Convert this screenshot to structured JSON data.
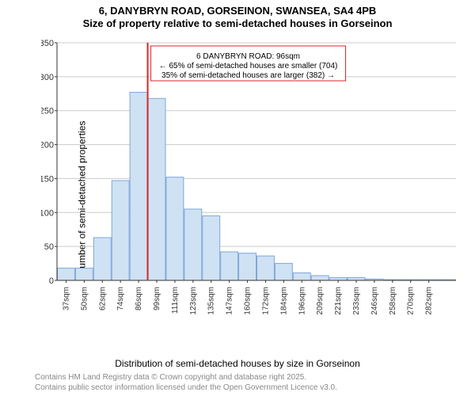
{
  "titles": {
    "line1": "6, DANYBRYN ROAD, GORSEINON, SWANSEA, SA4 4PB",
    "line2": "Size of property relative to semi-detached houses in Gorseinon"
  },
  "ylabel": "Number of semi-detached properties",
  "xlabel": "Distribution of semi-detached houses by size in Gorseinon",
  "footer": {
    "line1": "Contains HM Land Registry data © Crown copyright and database right 2025.",
    "line2": "Contains public sector information licensed under the Open Government Licence v3.0."
  },
  "chart": {
    "type": "bar",
    "ylim": [
      0,
      350
    ],
    "ytick_step": 50,
    "xtick_labels": [
      "37sqm",
      "50sqm",
      "62sqm",
      "74sqm",
      "86sqm",
      "99sqm",
      "111sqm",
      "123sqm",
      "135sqm",
      "147sqm",
      "160sqm",
      "172sqm",
      "184sqm",
      "196sqm",
      "209sqm",
      "221sqm",
      "233sqm",
      "246sqm",
      "258sqm",
      "270sqm",
      "282sqm"
    ],
    "values": [
      18,
      18,
      63,
      147,
      277,
      268,
      152,
      105,
      95,
      42,
      40,
      36,
      25,
      11,
      7,
      4,
      4,
      2,
      1,
      1,
      1,
      1
    ],
    "bar_fill": "#cfe2f3",
    "bar_stroke": "#7fa6d9",
    "axis_color": "#333333",
    "grid_color": "#cccccc",
    "background": "#ffffff",
    "ref_line": {
      "color": "#d62728",
      "x_index_after": 5,
      "width": 2
    },
    "annotation": {
      "lines": [
        "6 DANYBRYN ROAD: 96sqm",
        "← 65% of semi-detached houses are smaller (704)",
        "35% of semi-detached houses are larger (382) →"
      ],
      "border_color": "#d62728",
      "bg_color": "#ffffff",
      "font_size": 10
    }
  }
}
